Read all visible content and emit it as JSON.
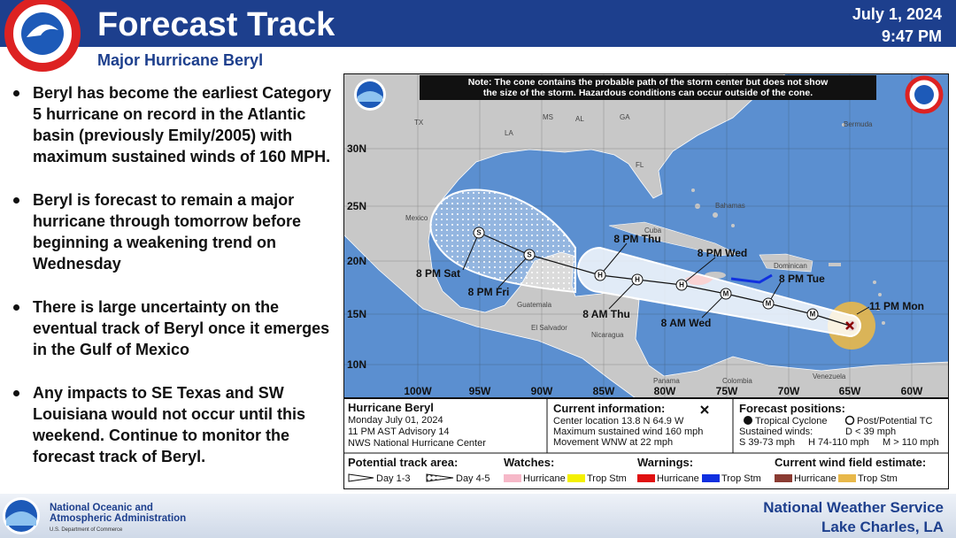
{
  "header": {
    "title": "Forecast Track",
    "subtitle": "Major Hurricane Beryl",
    "date": "July 1, 2024",
    "time": "9:47 PM"
  },
  "bullets": [
    "Beryl has become the earliest Category 5 hurricane on record in the Atlantic basin (previously Emily/2005) with maximum sustained winds of 160 MPH.",
    "Beryl is forecast to remain a major hurricane through tomorrow before beginning a weakening trend on Wednesday",
    "There is large uncertainty on the eventual track of Beryl once it emerges in the Gulf of Mexico",
    "Any impacts to SE Texas and SW Louisiana would not occur until this weekend. Continue to monitor the forecast track of Beryl."
  ],
  "map": {
    "note": [
      "Note: The cone contains the probable path of the storm center but does not show",
      "the size of the storm. Hazardous conditions can occur outside of the cone."
    ],
    "lat_labels": [
      "30N",
      "25N",
      "20N",
      "15N",
      "10N"
    ],
    "lon_labels": [
      "100W",
      "95W",
      "90W",
      "85W",
      "80W",
      "75W",
      "70W",
      "65W",
      "60W"
    ],
    "places": [
      "TX",
      "LA",
      "MS",
      "AL",
      "GA",
      "FL",
      "Bermuda",
      "Bahamas",
      "Cuba",
      "Mexico",
      "Guatemala",
      "El Salvador",
      "Nicaragua",
      "Panama",
      "Colombia",
      "Venezuela",
      "Dominican"
    ],
    "track_labels": [
      "11 PM Mon",
      "8 PM Tue",
      "8 AM Wed",
      "8 PM Wed",
      "8 AM Thu",
      "8 PM Thu",
      "8 PM Fri",
      "8 PM Sat"
    ],
    "markers": [
      "M",
      "M",
      "M",
      "H",
      "H",
      "H",
      "S",
      "S"
    ]
  },
  "legend": {
    "storm": [
      "Hurricane Beryl",
      "Monday July 01, 2024",
      "11 PM AST Advisory 14",
      "NWS National Hurricane Center"
    ],
    "current_title": "Current information:",
    "current": [
      "Center location 13.8 N 64.9 W",
      "Maximum sustained wind 160 mph",
      "Movement WNW at 22 mph"
    ],
    "forecast_title": "Forecast positions:",
    "tropical_cyclone": "Tropical Cyclone",
    "post_tc": "Post/Potential TC",
    "sustained": "Sustained winds:",
    "d": "D < 39 mph",
    "s": "S 39-73 mph",
    "h": "H 74-110 mph",
    "m": "M > 110 mph",
    "track_area": "Potential track area:",
    "day13": "Day 1-3",
    "day45": "Day 4-5",
    "watches": "Watches:",
    "warnings": "Warnings:",
    "wind_field": "Current wind field estimate:",
    "hurricane": "Hurricane",
    "trop_stm": "Trop Stm"
  },
  "footer": {
    "noaa": [
      "National Oceanic and",
      "Atmospheric Administration",
      "U.S. Department of Commerce"
    ],
    "nws": [
      "National Weather Service",
      "Lake Charles, LA"
    ]
  }
}
